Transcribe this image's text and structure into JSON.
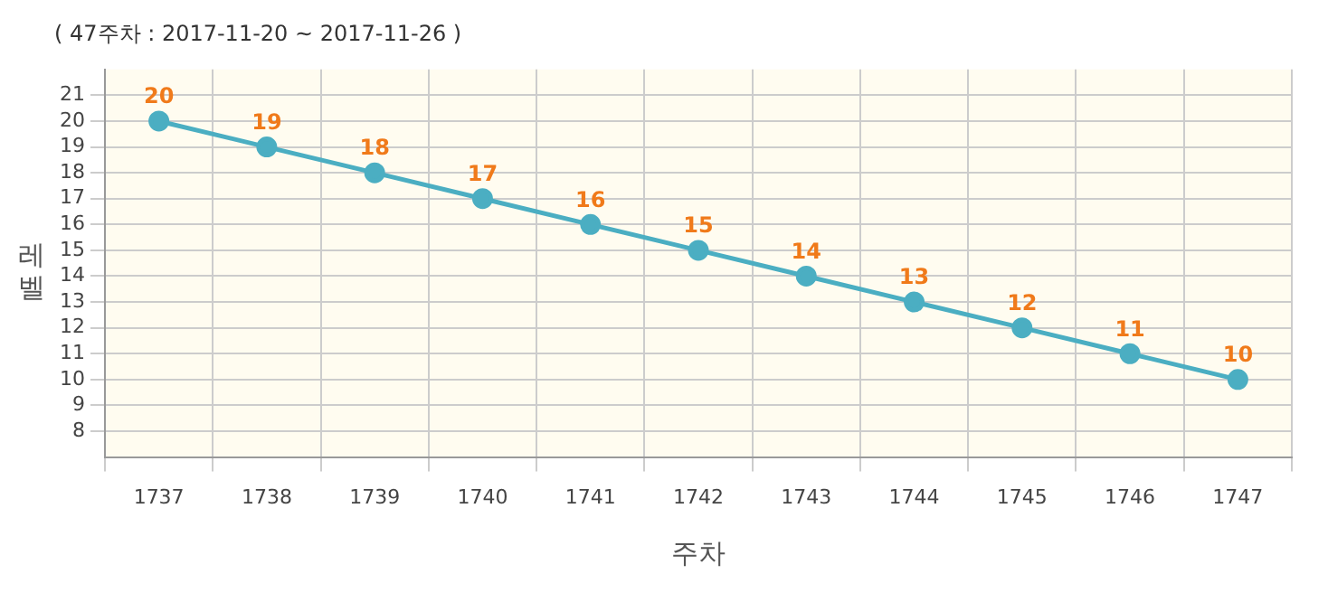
{
  "chart_data": {
    "type": "line",
    "title": "( 47주차 : 2017-11-20 ~ 2017-11-26 )",
    "xlabel": "주차",
    "ylabel": "레벨",
    "categories": [
      "1737",
      "1738",
      "1739",
      "1740",
      "1741",
      "1742",
      "1743",
      "1744",
      "1745",
      "1746",
      "1747"
    ],
    "series": [
      {
        "color": "#4baec2",
        "values": [
          20,
          19,
          18,
          17,
          16,
          15,
          14,
          13,
          12,
          11,
          10
        ]
      }
    ],
    "ylim": [
      7,
      22
    ],
    "yticks": [
      8,
      9,
      10,
      11,
      12,
      13,
      14,
      15,
      16,
      17,
      18,
      19,
      20,
      21
    ],
    "grid": true,
    "legend": false,
    "marker": "circle",
    "line_style": "solid",
    "data_labels": true
  }
}
